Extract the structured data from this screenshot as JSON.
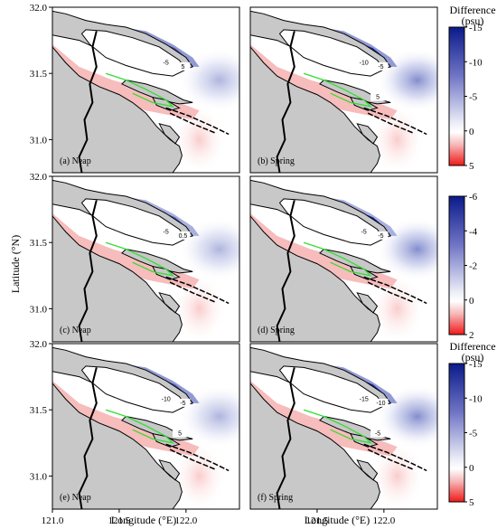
{
  "chart_data": {
    "type": "heatmap",
    "panels": [
      {
        "label": "(a) Neap",
        "row": 0,
        "col": 0,
        "contours": [
          "-5",
          "5"
        ]
      },
      {
        "label": "(b) Spring",
        "row": 0,
        "col": 1,
        "contours": [
          "-10",
          "-5",
          "5"
        ]
      },
      {
        "label": "(c) Neap",
        "row": 1,
        "col": 0,
        "contours": [
          "-5",
          "0.5"
        ]
      },
      {
        "label": "(d) Spring",
        "row": 1,
        "col": 1,
        "contours": [
          "-5",
          "-5"
        ]
      },
      {
        "label": "(e) Neap",
        "row": 2,
        "col": 0,
        "contours": [
          "-10",
          "-5",
          "5"
        ]
      },
      {
        "label": "(f) Spring",
        "row": 2,
        "col": 1,
        "contours": [
          "-15",
          "-10",
          "-5"
        ]
      }
    ],
    "xlabel": "Longitude (°E)",
    "ylabel": "Latitude (°N)",
    "xticks": [
      "121.0",
      "121.5",
      "122.0",
      "121.5",
      "122.0"
    ],
    "yticks": [
      "32.0",
      "31.5",
      "31.0"
    ],
    "xlim": [
      121.0,
      122.4
    ],
    "ylim": [
      30.75,
      32.0
    ],
    "colorbars": [
      {
        "title": "Difference",
        "unit": "(psu)",
        "ticks": [
          "-15",
          "-10",
          "-5",
          "0",
          "5"
        ],
        "range": [
          -15,
          5
        ]
      },
      {
        "title": "",
        "unit": "",
        "ticks": [
          "-6",
          "-4",
          "-2",
          "0",
          "2"
        ],
        "range": [
          -6,
          2
        ]
      },
      {
        "title": "Difference",
        "unit": "(psu)",
        "ticks": [
          "-15",
          "-10",
          "-5",
          "0",
          "5"
        ],
        "range": [
          -15,
          5
        ]
      }
    ],
    "colors": {
      "negative": "#0a1a8a",
      "positive": "#f02020",
      "land": "#c8c8c8",
      "contour": "#33dd33"
    }
  }
}
